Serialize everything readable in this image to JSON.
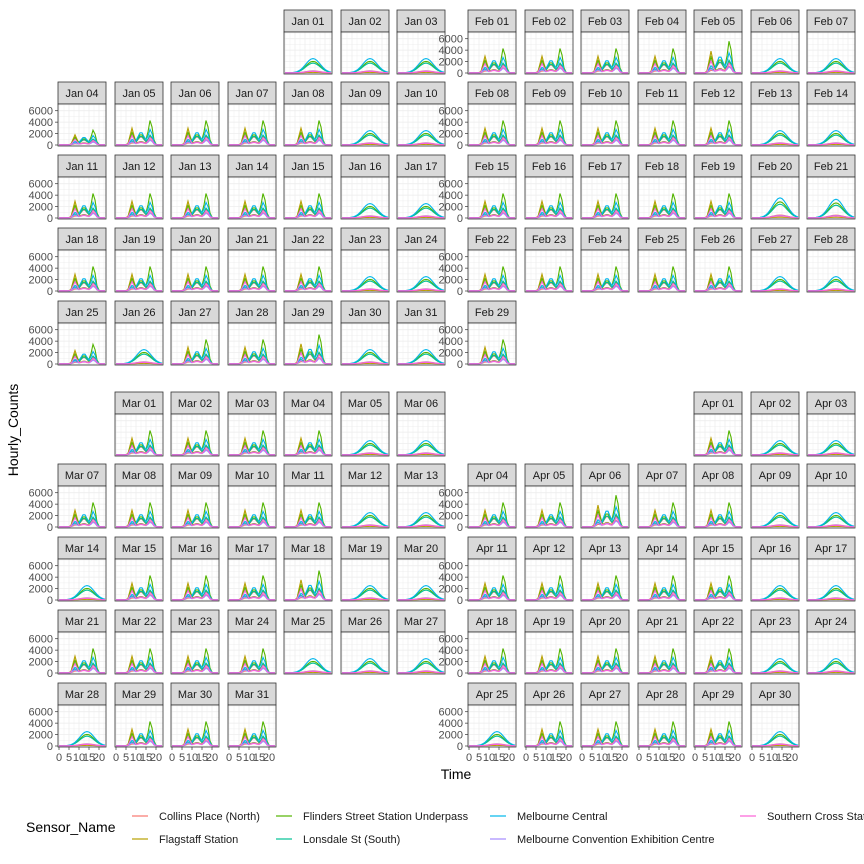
{
  "chart_data": {
    "type": "line",
    "title": "",
    "xlabel": "Time",
    "ylabel": "Hourly_Counts",
    "xlim": [
      0,
      23
    ],
    "ylim": [
      0,
      7000
    ],
    "x_ticks": [
      0,
      5,
      10,
      15,
      20
    ],
    "x_tick_labels": [
      "0",
      "5",
      "10",
      "15",
      "20"
    ],
    "y_ticks": [
      0,
      2000,
      4000,
      6000
    ],
    "y_tick_labels": [
      "0",
      "2000",
      "4000",
      "6000"
    ],
    "grid": true,
    "legend_title": "Sensor_Name",
    "legend_position": "bottom",
    "series": [
      {
        "name": "Collins Place (North)",
        "color": "#F8766D",
        "weekday_peaks": [
          300,
          1400,
          900
        ],
        "weekend_peak": 350
      },
      {
        "name": "Flagstaff Station",
        "color": "#B79F00",
        "weekday_peaks": [
          2900,
          600,
          1500
        ],
        "weekend_peak": 80
      },
      {
        "name": "Flinders Street Station Underpass",
        "color": "#53B400",
        "weekday_peaks": [
          2100,
          1800,
          4300
        ],
        "weekend_peak": 2000
      },
      {
        "name": "Lonsdale St (South)",
        "color": "#00C094",
        "weekday_peaks": [
          600,
          1500,
          1700
        ],
        "weekend_peak": 1700
      },
      {
        "name": "Melbourne Central",
        "color": "#00B6EB",
        "weekday_peaks": [
          900,
          2200,
          2700
        ],
        "weekend_peak": 2500
      },
      {
        "name": "Melbourne Convention Exhibition Centre",
        "color": "#A58AFF",
        "weekday_peaks": [
          500,
          500,
          800
        ],
        "weekend_peak": 300
      },
      {
        "name": "Southern Cross Station",
        "color": "#FB61D7",
        "weekday_peaks": [
          1600,
          400,
          1300
        ],
        "weekend_peak": 250
      }
    ],
    "months": [
      {
        "name": "Jan",
        "days": 31,
        "start_weekday": 4,
        "weekends": [
          1,
          2,
          3,
          9,
          10,
          16,
          17,
          23,
          24,
          26,
          30,
          31
        ],
        "day_peak_scale": {
          "4": 0.6,
          "25": 0.8,
          "29": 1.2
        }
      },
      {
        "name": "Feb",
        "days": 29,
        "start_weekday": 0,
        "weekends": [
          6,
          7,
          13,
          14,
          20,
          21,
          27,
          28
        ],
        "day_peak_scale": {
          "5": 1.3,
          "20": 1.4,
          "21": 1.3
        }
      },
      {
        "name": "Mar",
        "days": 31,
        "start_weekday": 1,
        "weekends": [
          5,
          6,
          12,
          13,
          14,
          19,
          20,
          25,
          26,
          27,
          28
        ],
        "day_peak_scale": {
          "18": 1.2,
          "25": 1.0
        }
      },
      {
        "name": "Apr",
        "days": 30,
        "start_weekday": 4,
        "weekends": [
          2,
          3,
          9,
          10,
          16,
          17,
          23,
          24,
          25,
          30
        ],
        "day_peak_scale": {
          "6": 1.3
        }
      }
    ],
    "facet_label_format": "{month} {day:02}"
  }
}
